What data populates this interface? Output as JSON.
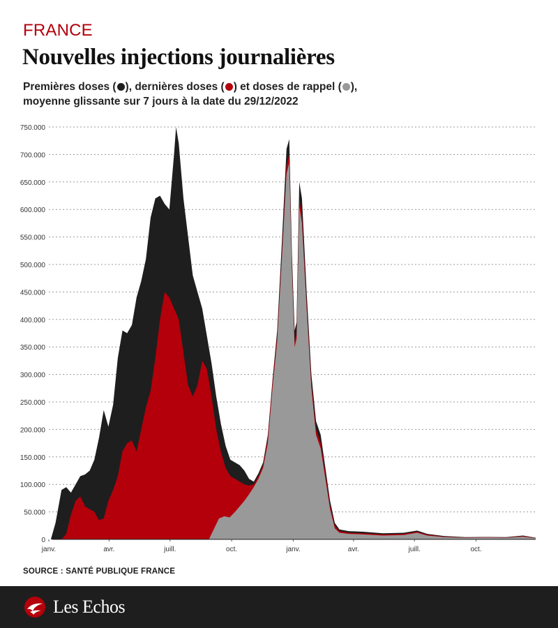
{
  "header": {
    "kicker": "FRANCE",
    "title": "Nouvelles injections journalières",
    "subtitle_line1_a": "Premières doses (",
    "subtitle_line1_b": "), dernières doses (",
    "subtitle_line1_c": ") et doses de rappel (",
    "subtitle_line1_d": "),",
    "subtitle_line2": "moyenne glissante sur 7 jours à la date du 29/12/2022"
  },
  "colors": {
    "first_doses": "#1e1e1e",
    "last_doses": "#b3000b",
    "booster_doses": "#999999",
    "grid": "#999999",
    "brand_red": "#b3000b"
  },
  "source": "SOURCE : SANTÉ PUBLIQUE FRANCE",
  "footer": {
    "logo_text": "Les Echos",
    "logo_icon": "les-echos-mark-icon"
  },
  "chart_data": {
    "type": "area",
    "x_unit": "date",
    "x_range": [
      "2021-01-01",
      "2022-12-29"
    ],
    "x_ticks": [
      {
        "date": "2021-01-01",
        "label": "janv."
      },
      {
        "date": "2021-04-01",
        "label": "avr."
      },
      {
        "date": "2021-07-01",
        "label": "juill."
      },
      {
        "date": "2021-10-01",
        "label": "oct."
      },
      {
        "date": "2022-01-01",
        "label": "janv."
      },
      {
        "date": "2022-04-01",
        "label": "avr."
      },
      {
        "date": "2022-07-01",
        "label": "juill."
      },
      {
        "date": "2022-10-01",
        "label": "oct."
      }
    ],
    "ylim": [
      0,
      750000
    ],
    "y_ticks": [
      {
        "value": 0,
        "label": "0"
      },
      {
        "value": 50000,
        "label": "50.000"
      },
      {
        "value": 100000,
        "label": "100.000"
      },
      {
        "value": 150000,
        "label": "150.000"
      },
      {
        "value": 200000,
        "label": "200.000"
      },
      {
        "value": 250000,
        "label": "250.000"
      },
      {
        "value": 300000,
        "label": "300.000"
      },
      {
        "value": 350000,
        "label": "350.000"
      },
      {
        "value": 400000,
        "label": "400.000"
      },
      {
        "value": 450000,
        "label": "450.000"
      },
      {
        "value": 500000,
        "label": "500.000"
      },
      {
        "value": 550000,
        "label": "550.000"
      },
      {
        "value": 600000,
        "label": "600.000"
      },
      {
        "value": 650000,
        "label": "650.000"
      },
      {
        "value": 700000,
        "label": "700.000"
      },
      {
        "value": 750000,
        "label": "750.000"
      }
    ],
    "grid": "horizontal dotted",
    "stacked": false,
    "series": [
      {
        "color": "#1e1e1e",
        "points": [
          [
            "2021-01-04",
            0
          ],
          [
            "2021-01-11",
            30000
          ],
          [
            "2021-01-20",
            90000
          ],
          [
            "2021-01-27",
            95000
          ],
          [
            "2021-02-03",
            85000
          ],
          [
            "2021-02-10",
            100000
          ],
          [
            "2021-02-17",
            115000
          ],
          [
            "2021-02-24",
            118000
          ],
          [
            "2021-03-03",
            125000
          ],
          [
            "2021-03-10",
            145000
          ],
          [
            "2021-03-17",
            185000
          ],
          [
            "2021-03-24",
            235000
          ],
          [
            "2021-03-31",
            205000
          ],
          [
            "2021-04-07",
            245000
          ],
          [
            "2021-04-14",
            330000
          ],
          [
            "2021-04-21",
            380000
          ],
          [
            "2021-04-28",
            375000
          ],
          [
            "2021-05-05",
            390000
          ],
          [
            "2021-05-12",
            440000
          ],
          [
            "2021-05-19",
            470000
          ],
          [
            "2021-05-26",
            510000
          ],
          [
            "2021-06-02",
            585000
          ],
          [
            "2021-06-09",
            620000
          ],
          [
            "2021-06-16",
            625000
          ],
          [
            "2021-06-23",
            610000
          ],
          [
            "2021-06-30",
            600000
          ],
          [
            "2021-07-07",
            700000
          ],
          [
            "2021-07-10",
            750000
          ],
          [
            "2021-07-14",
            720000
          ],
          [
            "2021-07-21",
            620000
          ],
          [
            "2021-07-28",
            550000
          ],
          [
            "2021-08-04",
            480000
          ],
          [
            "2021-08-11",
            450000
          ],
          [
            "2021-08-18",
            420000
          ],
          [
            "2021-08-25",
            370000
          ],
          [
            "2021-09-01",
            320000
          ],
          [
            "2021-09-08",
            260000
          ],
          [
            "2021-09-15",
            210000
          ],
          [
            "2021-09-22",
            170000
          ],
          [
            "2021-09-29",
            145000
          ],
          [
            "2021-10-06",
            140000
          ],
          [
            "2021-10-13",
            135000
          ],
          [
            "2021-10-20",
            125000
          ],
          [
            "2021-10-27",
            110000
          ],
          [
            "2021-11-03",
            105000
          ],
          [
            "2021-11-10",
            120000
          ],
          [
            "2021-11-17",
            140000
          ],
          [
            "2021-11-24",
            190000
          ],
          [
            "2021-12-01",
            290000
          ],
          [
            "2021-12-08",
            380000
          ],
          [
            "2021-12-15",
            540000
          ],
          [
            "2021-12-22",
            710000
          ],
          [
            "2021-12-26",
            728000
          ],
          [
            "2021-12-30",
            520000
          ],
          [
            "2022-01-03",
            380000
          ],
          [
            "2022-01-06",
            395000
          ],
          [
            "2022-01-10",
            650000
          ],
          [
            "2022-01-14",
            620000
          ],
          [
            "2022-01-21",
            450000
          ],
          [
            "2022-01-28",
            300000
          ],
          [
            "2022-02-04",
            215000
          ],
          [
            "2022-02-11",
            190000
          ],
          [
            "2022-02-18",
            130000
          ],
          [
            "2022-02-25",
            70000
          ],
          [
            "2022-03-04",
            30000
          ],
          [
            "2022-03-11",
            18000
          ],
          [
            "2022-03-25",
            15000
          ],
          [
            "2022-04-15",
            14000
          ],
          [
            "2022-05-15",
            11000
          ],
          [
            "2022-06-15",
            12000
          ],
          [
            "2022-07-05",
            16000
          ],
          [
            "2022-07-20",
            10000
          ],
          [
            "2022-08-15",
            6000
          ],
          [
            "2022-09-15",
            4000
          ],
          [
            "2022-10-15",
            4500
          ],
          [
            "2022-11-15",
            4000
          ],
          [
            "2022-12-10",
            7000
          ],
          [
            "2022-12-29",
            3000
          ]
        ]
      },
      {
        "color": "#b3000b",
        "points": [
          [
            "2021-01-20",
            0
          ],
          [
            "2021-01-27",
            10000
          ],
          [
            "2021-02-03",
            45000
          ],
          [
            "2021-02-10",
            70000
          ],
          [
            "2021-02-17",
            78000
          ],
          [
            "2021-02-24",
            60000
          ],
          [
            "2021-03-03",
            55000
          ],
          [
            "2021-03-10",
            50000
          ],
          [
            "2021-03-17",
            35000
          ],
          [
            "2021-03-24",
            38000
          ],
          [
            "2021-03-31",
            70000
          ],
          [
            "2021-04-07",
            90000
          ],
          [
            "2021-04-14",
            115000
          ],
          [
            "2021-04-21",
            160000
          ],
          [
            "2021-04-28",
            175000
          ],
          [
            "2021-05-05",
            180000
          ],
          [
            "2021-05-12",
            160000
          ],
          [
            "2021-05-19",
            200000
          ],
          [
            "2021-05-26",
            240000
          ],
          [
            "2021-06-02",
            270000
          ],
          [
            "2021-06-09",
            330000
          ],
          [
            "2021-06-16",
            400000
          ],
          [
            "2021-06-23",
            450000
          ],
          [
            "2021-06-30",
            440000
          ],
          [
            "2021-07-07",
            420000
          ],
          [
            "2021-07-14",
            400000
          ],
          [
            "2021-07-21",
            340000
          ],
          [
            "2021-07-28",
            280000
          ],
          [
            "2021-08-04",
            260000
          ],
          [
            "2021-08-11",
            280000
          ],
          [
            "2021-08-18",
            325000
          ],
          [
            "2021-08-25",
            310000
          ],
          [
            "2021-09-01",
            260000
          ],
          [
            "2021-09-08",
            200000
          ],
          [
            "2021-09-15",
            160000
          ],
          [
            "2021-09-22",
            130000
          ],
          [
            "2021-09-29",
            115000
          ],
          [
            "2021-10-06",
            110000
          ],
          [
            "2021-10-13",
            105000
          ],
          [
            "2021-10-20",
            100000
          ],
          [
            "2021-10-27",
            98000
          ],
          [
            "2021-11-03",
            100000
          ],
          [
            "2021-11-10",
            115000
          ],
          [
            "2021-11-17",
            135000
          ],
          [
            "2021-11-24",
            185000
          ],
          [
            "2021-12-01",
            285000
          ],
          [
            "2021-12-08",
            370000
          ],
          [
            "2021-12-15",
            520000
          ],
          [
            "2021-12-22",
            680000
          ],
          [
            "2021-12-26",
            700000
          ],
          [
            "2021-12-30",
            500000
          ],
          [
            "2022-01-03",
            360000
          ],
          [
            "2022-01-06",
            375000
          ],
          [
            "2022-01-10",
            620000
          ],
          [
            "2022-01-14",
            590000
          ],
          [
            "2022-01-21",
            430000
          ],
          [
            "2022-01-28",
            285000
          ],
          [
            "2022-02-04",
            200000
          ],
          [
            "2022-02-11",
            175000
          ],
          [
            "2022-02-18",
            120000
          ],
          [
            "2022-02-25",
            62000
          ],
          [
            "2022-03-04",
            25000
          ],
          [
            "2022-03-11",
            15000
          ],
          [
            "2022-03-25",
            12000
          ],
          [
            "2022-04-15",
            11000
          ],
          [
            "2022-05-15",
            9000
          ],
          [
            "2022-06-15",
            10000
          ],
          [
            "2022-07-05",
            14000
          ],
          [
            "2022-07-20",
            8500
          ],
          [
            "2022-08-15",
            5000
          ],
          [
            "2022-09-15",
            3500
          ],
          [
            "2022-10-15",
            4000
          ],
          [
            "2022-11-15",
            3500
          ],
          [
            "2022-12-10",
            6000
          ],
          [
            "2022-12-29",
            2500
          ]
        ]
      },
      {
        "color": "#999999",
        "points": [
          [
            "2021-08-28",
            0
          ],
          [
            "2021-09-05",
            20000
          ],
          [
            "2021-09-12",
            38000
          ],
          [
            "2021-09-20",
            42000
          ],
          [
            "2021-09-28",
            40000
          ],
          [
            "2021-10-06",
            50000
          ],
          [
            "2021-10-13",
            60000
          ],
          [
            "2021-10-20",
            70000
          ],
          [
            "2021-10-27",
            82000
          ],
          [
            "2021-11-03",
            95000
          ],
          [
            "2021-11-10",
            110000
          ],
          [
            "2021-11-17",
            130000
          ],
          [
            "2021-11-24",
            175000
          ],
          [
            "2021-12-01",
            275000
          ],
          [
            "2021-12-08",
            360000
          ],
          [
            "2021-12-15",
            510000
          ],
          [
            "2021-12-22",
            665000
          ],
          [
            "2021-12-26",
            685000
          ],
          [
            "2021-12-30",
            490000
          ],
          [
            "2022-01-03",
            350000
          ],
          [
            "2022-01-06",
            365000
          ],
          [
            "2022-01-10",
            605000
          ],
          [
            "2022-01-14",
            575000
          ],
          [
            "2022-01-21",
            420000
          ],
          [
            "2022-01-28",
            275000
          ],
          [
            "2022-02-04",
            190000
          ],
          [
            "2022-02-11",
            165000
          ],
          [
            "2022-02-18",
            110000
          ],
          [
            "2022-02-25",
            55000
          ],
          [
            "2022-03-04",
            20000
          ],
          [
            "2022-03-11",
            12000
          ],
          [
            "2022-03-25",
            10000
          ],
          [
            "2022-04-15",
            9000
          ],
          [
            "2022-05-15",
            7000
          ],
          [
            "2022-06-15",
            8000
          ],
          [
            "2022-07-05",
            12000
          ],
          [
            "2022-07-20",
            7000
          ],
          [
            "2022-08-15",
            4000
          ],
          [
            "2022-09-15",
            3000
          ],
          [
            "2022-10-15",
            3500
          ],
          [
            "2022-11-15",
            3000
          ],
          [
            "2022-12-10",
            5000
          ],
          [
            "2022-12-29",
            2000
          ]
        ]
      }
    ]
  }
}
